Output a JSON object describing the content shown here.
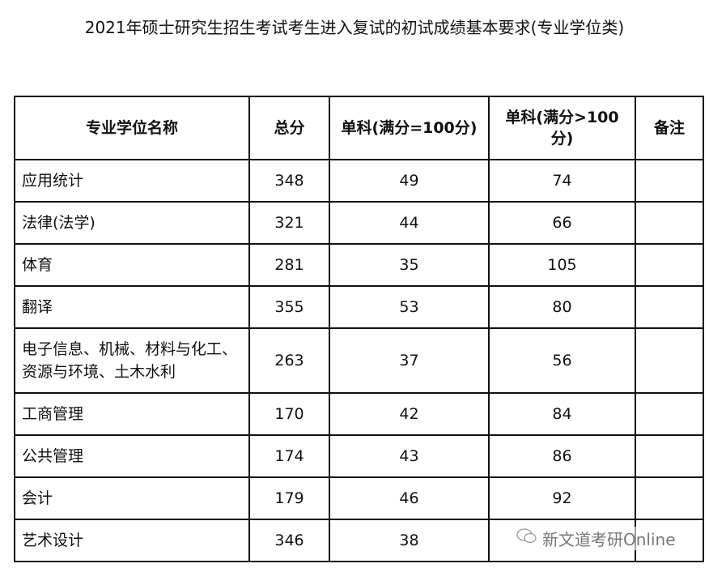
{
  "title": "2021年硕士研究生招生考试考生进入复试的初试成绩基本要求(专业学位类)",
  "headers": [
    "专业学位名称",
    "总分",
    "单科(满分=100分)",
    "单科(满分>100分)",
    "备注"
  ],
  "rows": [
    [
      "应用统计",
      "348",
      "49",
      "74",
      ""
    ],
    [
      "法律(法学)",
      "321",
      "44",
      "66",
      ""
    ],
    [
      "体育",
      "281",
      "35",
      "105",
      ""
    ],
    [
      "翻译",
      "355",
      "53",
      "80",
      ""
    ],
    [
      "电子信息、机械、材料与化工、资源与环境、土木水利",
      "263",
      "37",
      "56",
      ""
    ],
    [
      "工商管理",
      "170",
      "42",
      "84",
      ""
    ],
    [
      "公共管理",
      "174",
      "43",
      "86",
      ""
    ],
    [
      "会计",
      "179",
      "46",
      "92",
      ""
    ],
    [
      "艺术设计",
      "346",
      "38",
      "",
      ""
    ]
  ],
  "watermark": {
    "icon": "wechat-icon",
    "text": "新文道考研Online"
  }
}
